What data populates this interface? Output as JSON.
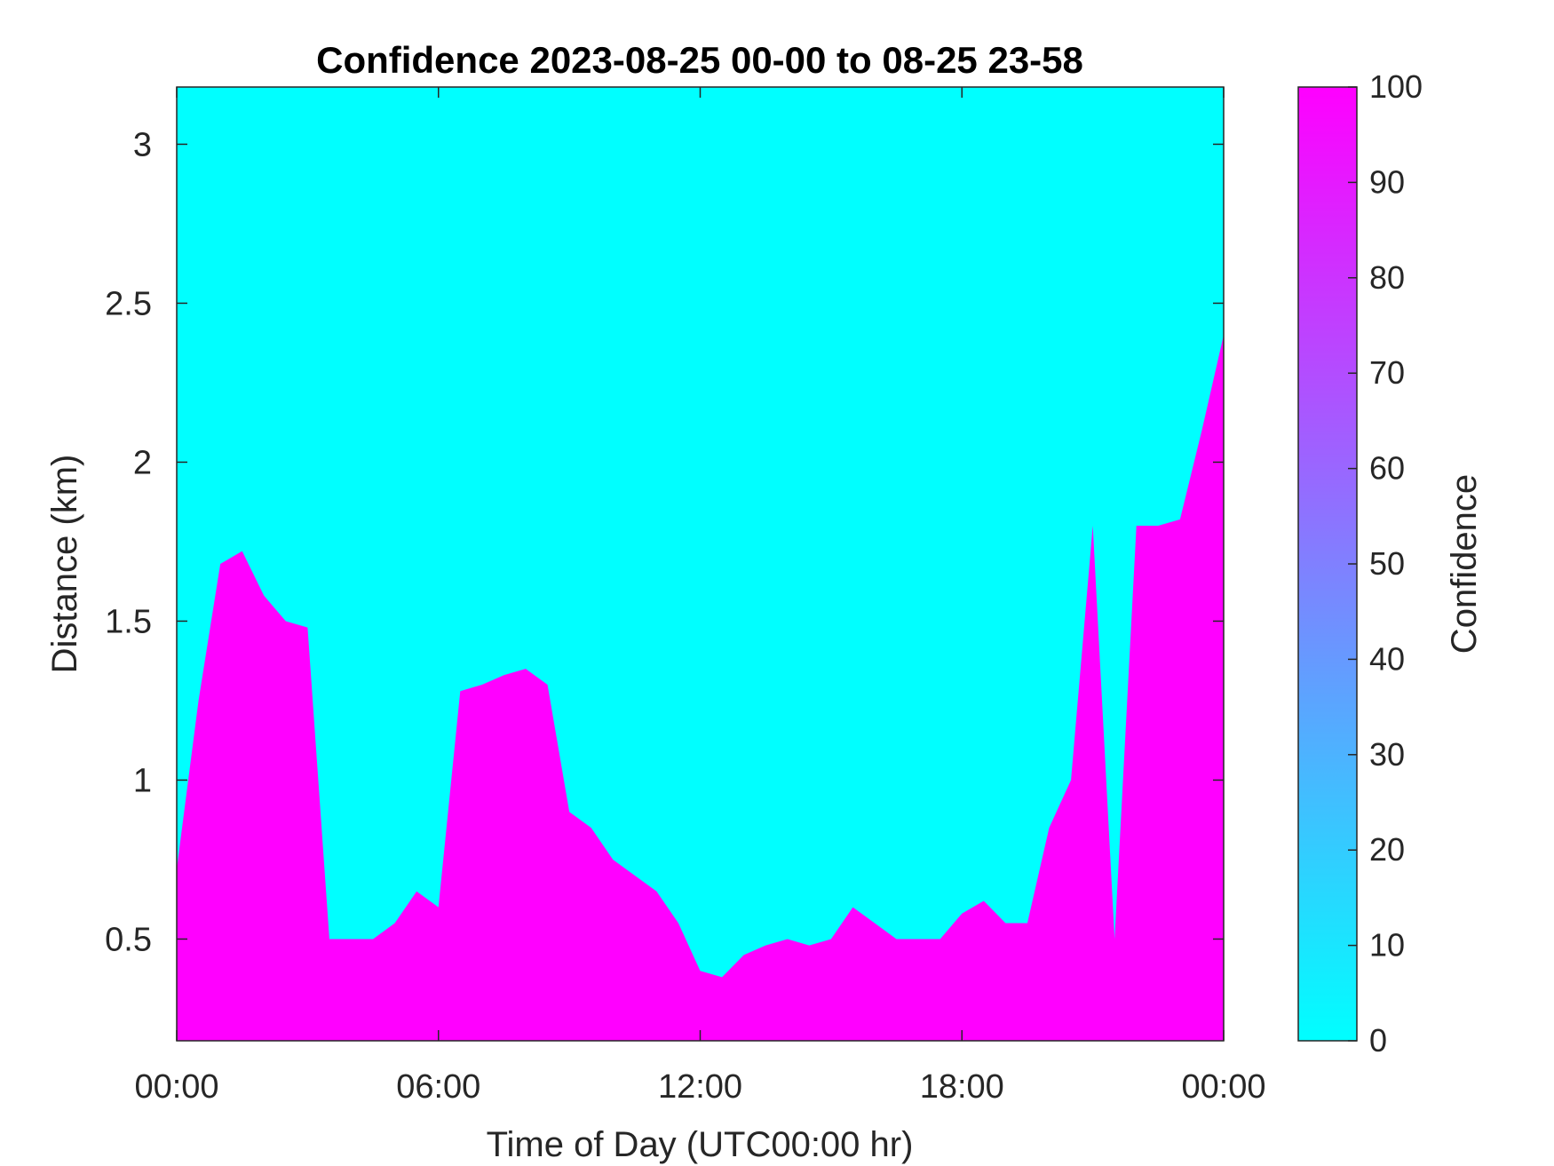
{
  "chart_data": {
    "type": "heatmap",
    "title": "Confidence 2023-08-25 00-00 to 08-25 23-58",
    "xlabel": "Time of Day (UTC00:00 hr)",
    "ylabel": "Distance (km)",
    "xlim": [
      0,
      24
    ],
    "ylim": [
      0.18,
      3.18
    ],
    "x_ticks": [
      0,
      6,
      12,
      18,
      24
    ],
    "x_tick_labels": [
      "00:00",
      "06:00",
      "12:00",
      "18:00",
      "00:00"
    ],
    "y_ticks": [
      0.5,
      1,
      1.5,
      2,
      2.5,
      3
    ],
    "y_tick_labels": [
      "0.5",
      "1",
      "1.5",
      "2",
      "2.5",
      "3"
    ],
    "colorbar": {
      "label": "Confidence",
      "range": [
        0,
        100
      ],
      "ticks": [
        0,
        10,
        20,
        30,
        40,
        50,
        60,
        70,
        80,
        90,
        100
      ],
      "tick_labels": [
        "0",
        "10",
        "20",
        "30",
        "40",
        "50",
        "60",
        "70",
        "80",
        "90",
        "100"
      ],
      "color_low": "#00ffff",
      "color_high": "#ff00ff"
    },
    "series": [
      {
        "value": 100,
        "description_of_values": "Upper boundary of the 100-confidence region (km) at hourly times; 0 confidence above",
        "x": [
          0,
          0.5,
          1,
          1.5,
          2,
          2.5,
          3,
          3.5,
          4,
          4.5,
          5,
          5.5,
          6,
          6.5,
          7,
          7.5,
          8,
          8.5,
          9,
          9.5,
          10,
          10.5,
          11,
          11.5,
          12,
          12.5,
          13,
          13.5,
          14,
          14.5,
          15,
          15.5,
          16,
          16.5,
          17,
          17.5,
          18,
          18.5,
          19,
          19.5,
          20,
          20.5,
          21,
          21.5,
          22,
          22.5,
          23,
          23.5,
          24
        ],
        "boundary": [
          0.72,
          1.25,
          1.68,
          1.72,
          1.58,
          1.5,
          1.48,
          0.5,
          0.5,
          0.5,
          0.55,
          0.65,
          0.6,
          1.28,
          1.3,
          1.33,
          1.35,
          1.3,
          0.9,
          0.85,
          0.75,
          0.7,
          0.65,
          0.55,
          0.4,
          0.38,
          0.45,
          0.48,
          0.5,
          0.48,
          0.5,
          0.6,
          0.55,
          0.5,
          0.5,
          0.5,
          0.58,
          0.62,
          0.55,
          0.55,
          0.85,
          1.0,
          1.8,
          0.5,
          1.8,
          1.8,
          1.82,
          2.1,
          2.4
        ]
      }
    ]
  }
}
